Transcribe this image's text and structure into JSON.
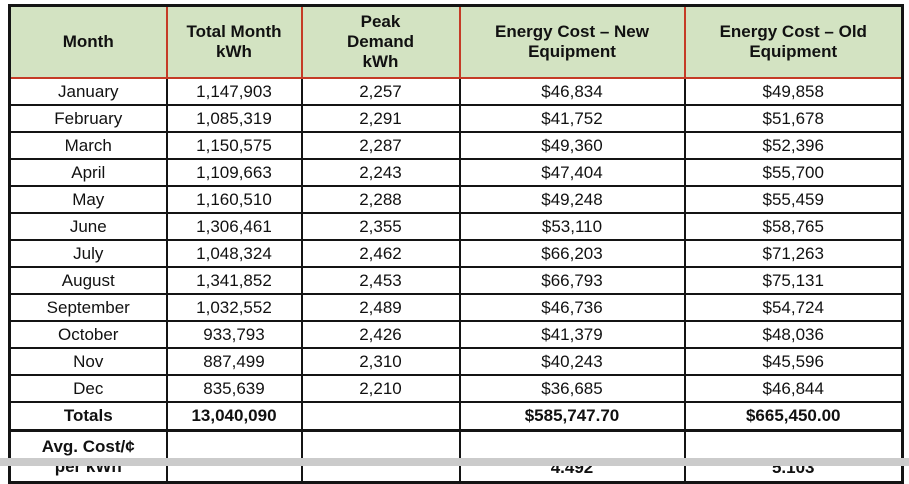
{
  "colors": {
    "header_bg": "#d3e3c2",
    "header_border": "#c53b26",
    "grid": "#141414",
    "bottom_strip": "#cbcbcb"
  },
  "table": {
    "headers": [
      "Month",
      "Total Month\nkWh",
      "Peak\nDemand\nkWh",
      "Energy Cost – New\nEquipment",
      "Energy Cost – Old\nEquipment"
    ],
    "rows": [
      [
        "January",
        "1,147,903",
        "2,257",
        "$46,834",
        "$49,858"
      ],
      [
        "February",
        "1,085,319",
        "2,291",
        "$41,752",
        "$51,678"
      ],
      [
        "March",
        "1,150,575",
        "2,287",
        "$49,360",
        "$52,396"
      ],
      [
        "April",
        "1,109,663",
        "2,243",
        "$47,404",
        "$55,700"
      ],
      [
        "May",
        "1,160,510",
        "2,288",
        "$49,248",
        "$55,459"
      ],
      [
        "June",
        "1,306,461",
        "2,355",
        "$53,110",
        "$58,765"
      ],
      [
        "July",
        "1,048,324",
        "2,462",
        "$66,203",
        "$71,263"
      ],
      [
        "August",
        "1,341,852",
        "2,453",
        "$66,793",
        "$75,131"
      ],
      [
        "September",
        "1,032,552",
        "2,489",
        "$46,736",
        "$54,724"
      ],
      [
        "October",
        "933,793",
        "2,426",
        "$41,379",
        "$48,036"
      ],
      [
        "Nov",
        "887,499",
        "2,310",
        "$40,243",
        "$45,596"
      ],
      [
        "Dec",
        "835,639",
        "2,210",
        "$36,685",
        "$46,844"
      ]
    ],
    "totals_row": [
      "Totals",
      "13,040,090",
      "",
      "$585,747.70",
      "$665,450.00"
    ],
    "avg_row": [
      "Avg. Cost/¢\nper kWh",
      "",
      "",
      "4.492",
      "5.103"
    ]
  }
}
